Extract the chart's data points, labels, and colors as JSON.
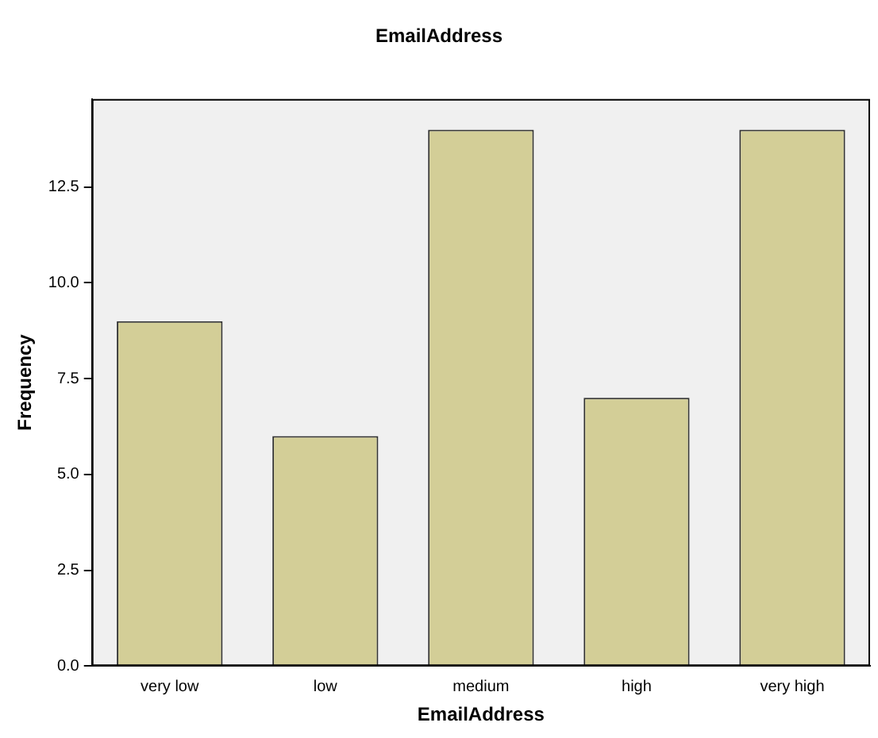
{
  "chart_data": {
    "type": "bar",
    "title": "EmailAddress",
    "xlabel": "EmailAddress",
    "ylabel": "Frequency",
    "categories": [
      "very low",
      "low",
      "medium",
      "high",
      "very high"
    ],
    "values": [
      9,
      6,
      14,
      7,
      14
    ],
    "color": "#d3ce97",
    "ylim": [
      0,
      14.8
    ],
    "yticks": [
      {
        "value": 0,
        "label": "0.0"
      },
      {
        "value": 2.5,
        "label": "2.5"
      },
      {
        "value": 5,
        "label": "5.0"
      },
      {
        "value": 7.5,
        "label": "7.5"
      },
      {
        "value": 10,
        "label": "10.0"
      },
      {
        "value": 12.5,
        "label": "12.5"
      }
    ],
    "grid": false,
    "legend": false
  }
}
